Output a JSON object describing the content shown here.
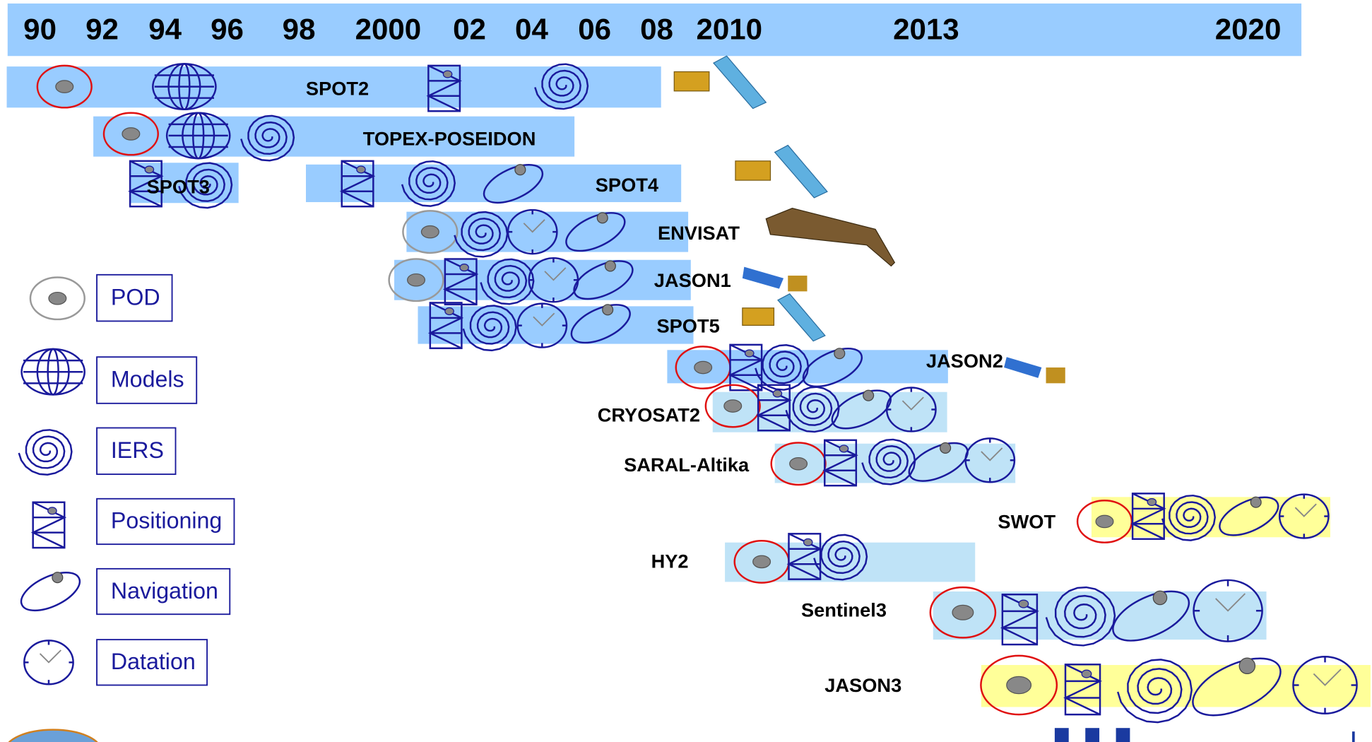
{
  "timeline": {
    "years": [
      "90",
      "92",
      "94",
      "96",
      "98",
      "2000",
      "02",
      "04",
      "06",
      "08",
      "2010",
      "2013",
      "2020"
    ]
  },
  "missions": [
    {
      "name": "SPOT2"
    },
    {
      "name": "TOPEX-POSEIDON"
    },
    {
      "name": "SPOT3"
    },
    {
      "name": "SPOT4"
    },
    {
      "name": "ENVISAT"
    },
    {
      "name": "JASON1"
    },
    {
      "name": "SPOT5"
    },
    {
      "name": "JASON2"
    },
    {
      "name": "CRYOSAT2"
    },
    {
      "name": "SARAL-Altika"
    },
    {
      "name": "SWOT"
    },
    {
      "name": "HY2"
    },
    {
      "name": "Sentinel3"
    },
    {
      "name": "JASON3"
    }
  ],
  "legend": [
    {
      "label": "POD"
    },
    {
      "label": "Models"
    },
    {
      "label": "IERS"
    },
    {
      "label": "Positioning"
    },
    {
      "label": "Navigation"
    },
    {
      "label": "Datation"
    }
  ]
}
